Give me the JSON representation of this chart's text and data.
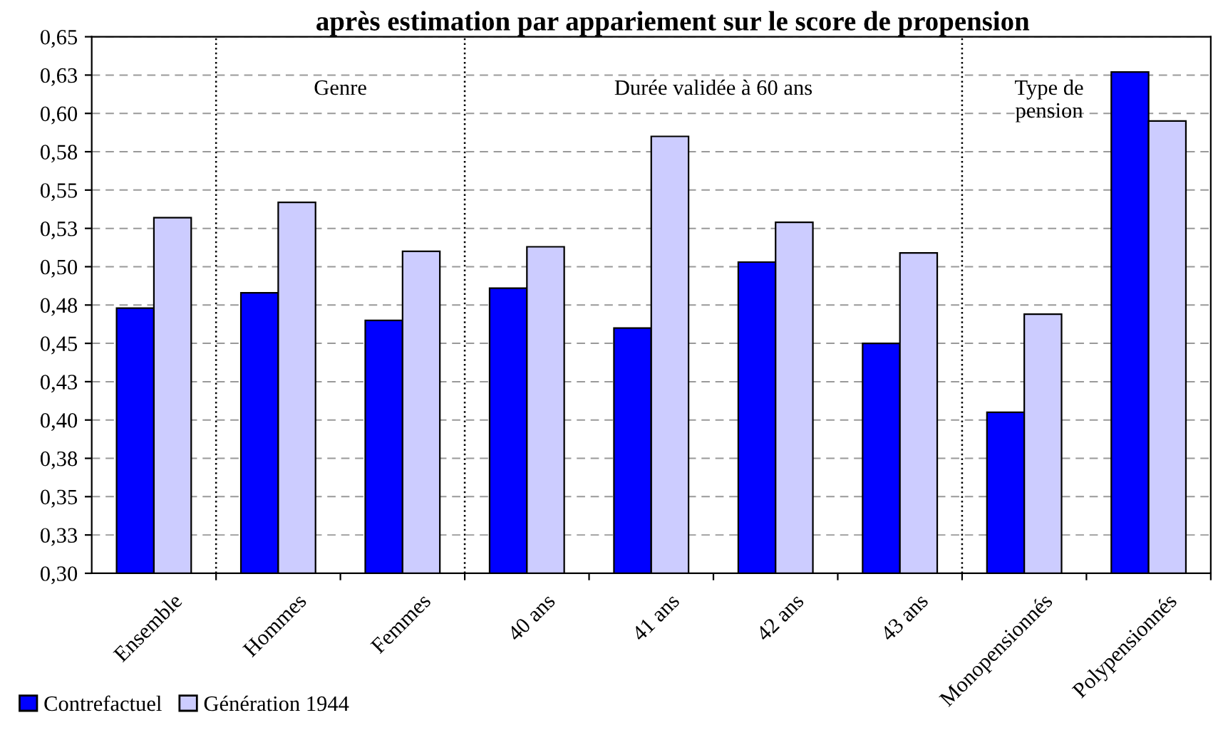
{
  "chart_data": {
    "type": "bar",
    "title": "après estimation par appariement sur le score de propension",
    "categories": [
      "Ensemble",
      "Hommes",
      "Femmes",
      "40 ans",
      "41 ans",
      "42 ans",
      "43 ans",
      "Monopensionnés",
      "Polypensionnés"
    ],
    "series": [
      {
        "name": "Contrefactuel",
        "color": "#0000ff",
        "values": [
          0.473,
          0.483,
          0.465,
          0.486,
          0.46,
          0.503,
          0.45,
          0.405,
          0.627
        ]
      },
      {
        "name": "Génération 1944",
        "color": "#ccccff",
        "values": [
          0.532,
          0.542,
          0.51,
          0.513,
          0.585,
          0.529,
          0.509,
          0.469,
          0.595
        ]
      }
    ],
    "ylim": [
      0.3,
      0.65
    ],
    "yticks": [
      {
        "value": 0.3,
        "label": "0,30"
      },
      {
        "value": 0.325,
        "label": "0,33"
      },
      {
        "value": 0.35,
        "label": "0,35"
      },
      {
        "value": 0.375,
        "label": "0,38"
      },
      {
        "value": 0.4,
        "label": "0,40"
      },
      {
        "value": 0.425,
        "label": "0,43"
      },
      {
        "value": 0.45,
        "label": "0,45"
      },
      {
        "value": 0.475,
        "label": "0,48"
      },
      {
        "value": 0.5,
        "label": "0,50"
      },
      {
        "value": 0.525,
        "label": "0,53"
      },
      {
        "value": 0.55,
        "label": "0,55"
      },
      {
        "value": 0.575,
        "label": "0,58"
      },
      {
        "value": 0.6,
        "label": "0,60"
      },
      {
        "value": 0.625,
        "label": "0,63"
      },
      {
        "value": 0.65,
        "label": "0,65"
      }
    ],
    "annotations": [
      "Genre",
      "Durée validée à 60 ans",
      "Type de\npension"
    ],
    "grid": "y",
    "legend": "bottom left"
  }
}
